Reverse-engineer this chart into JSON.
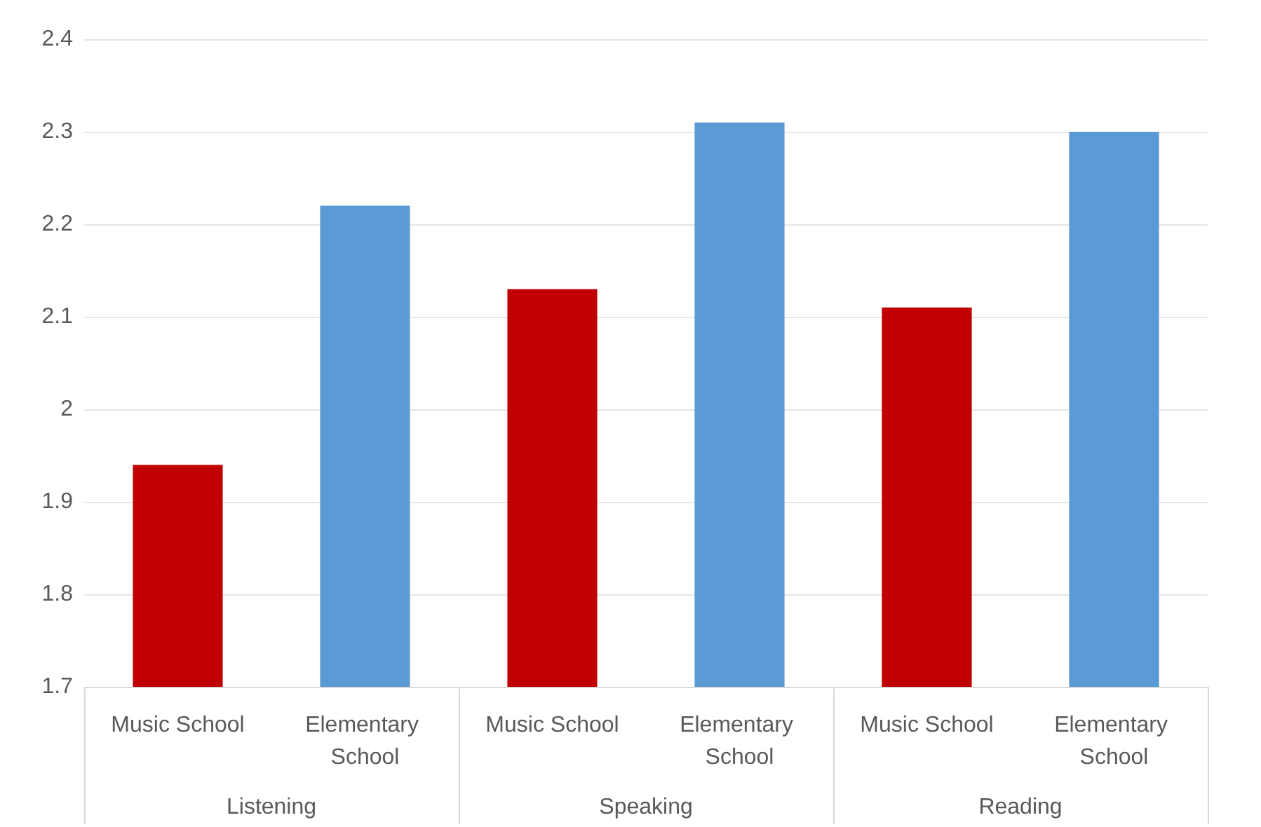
{
  "chart_data": {
    "type": "bar",
    "categories": [
      "Music School",
      "Elementary School",
      "Music School",
      "Elementary School",
      "Music School",
      "Elementary School"
    ],
    "values": [
      1.94,
      2.22,
      2.13,
      2.31,
      2.11,
      2.3
    ],
    "colors": [
      "#c00000",
      "#5b9bd5",
      "#c00000",
      "#5b9bd5",
      "#c00000",
      "#5b9bd5"
    ],
    "annotations": [
      "Listening",
      "Speaking",
      "Reading"
    ],
    "ylim": [
      1.7,
      2.4
    ],
    "yticks": [
      1.7,
      1.8,
      1.9,
      2,
      2.1,
      2.2,
      2.3,
      2.4
    ],
    "grid": "y"
  }
}
